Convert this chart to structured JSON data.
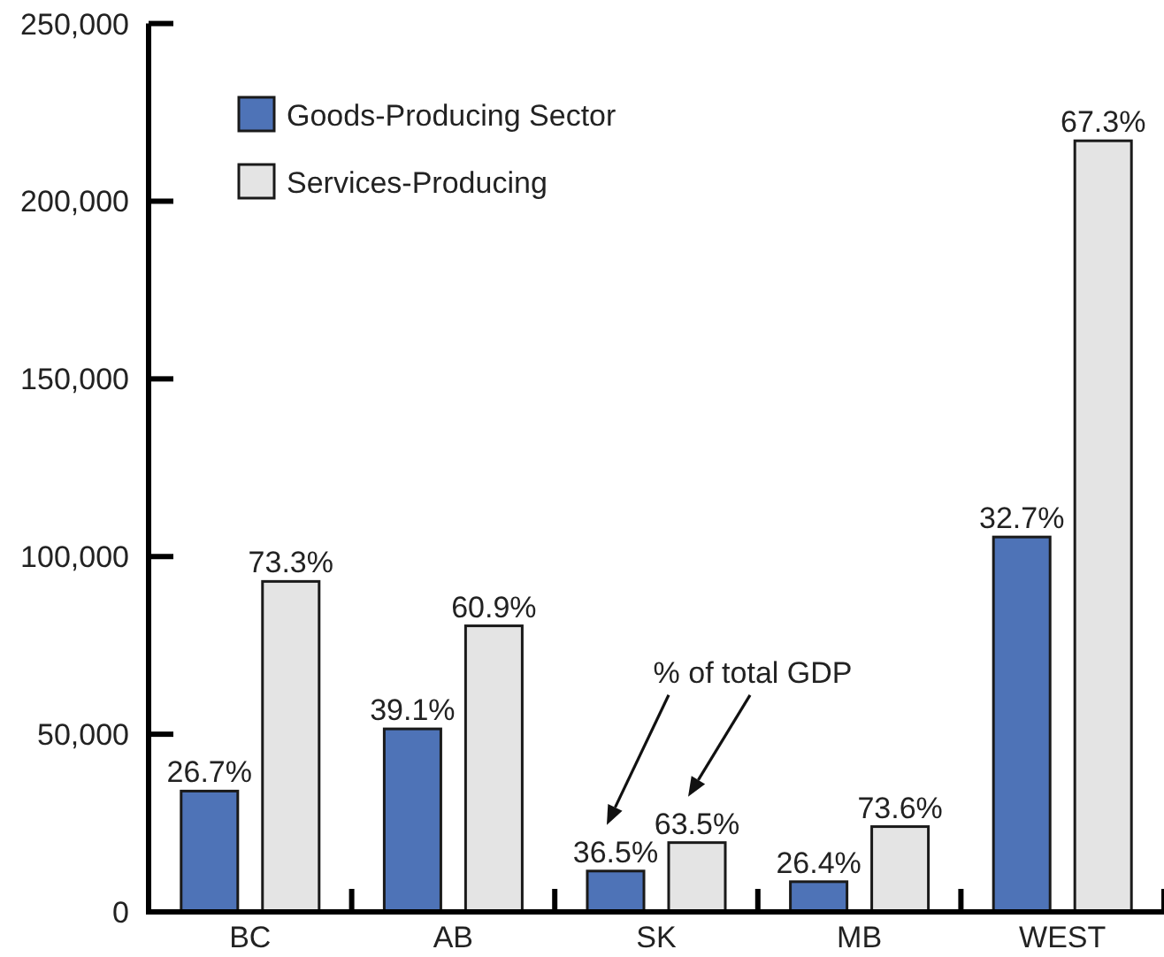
{
  "chart_data": {
    "type": "bar",
    "categories": [
      "BC",
      "AB",
      "SK",
      "MB",
      "WEST"
    ],
    "series": [
      {
        "name": "Goods-Producing Sector",
        "color": "#4e73b7",
        "values": [
          34000,
          51500,
          11500,
          8500,
          105500
        ]
      },
      {
        "name": "Services-Producing",
        "color": "#e4e4e4",
        "values": [
          93000,
          80500,
          19500,
          24000,
          217000
        ]
      }
    ],
    "ylim": [
      0,
      250000
    ],
    "yticks": [
      0,
      {
        "value": 50000,
        "label": "50,000"
      },
      {
        "value": 100000,
        "label": "100,000"
      },
      {
        "value": 150000,
        "label": "150,000"
      },
      {
        "value": 200000,
        "label": "200,000"
      },
      {
        "value": 250000,
        "label": "250,000"
      }
    ],
    "legend": "top left",
    "annotations": [
      "% of total GDP",
      "26.7%",
      "39.1%",
      "36.5%",
      "26.4%",
      "32.7%",
      "73.3%",
      "60.9%",
      "63.5%",
      "73.6%",
      "67.3%"
    ]
  }
}
